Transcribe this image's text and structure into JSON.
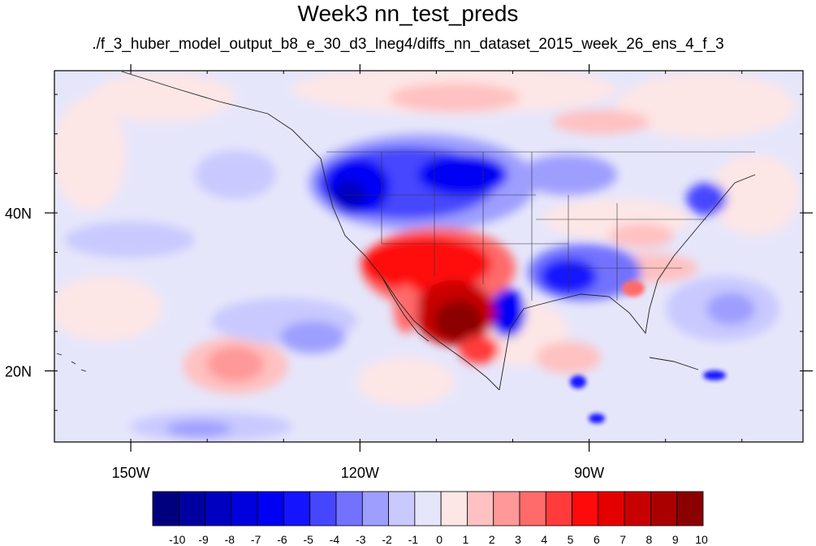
{
  "title": "Week3 nn_test_preds",
  "subtitle": "./f_3_huber_model_output_b8_e_30_d3_lneg4/diffs_nn_dataset_2015_week_26_ens_4_f_3",
  "map": {
    "lon_range": [
      -160,
      -62
    ],
    "lat_range": [
      11,
      58
    ],
    "lon_ticks": [
      {
        "value": -150,
        "label": "150W"
      },
      {
        "value": -120,
        "label": "120W"
      },
      {
        "value": -90,
        "label": "90W"
      }
    ],
    "lat_ticks": [
      {
        "value": 40,
        "label": "40N"
      },
      {
        "value": 20,
        "label": "20N"
      }
    ],
    "field_description": "filled contour map of prediction differences over North America"
  },
  "colorbar": {
    "levels": [
      "-10",
      "-9",
      "-8",
      "-7",
      "-6",
      "-5",
      "-4",
      "-3",
      "-2",
      "-1",
      "0",
      "1",
      "2",
      "3",
      "4",
      "5",
      "6",
      "7",
      "8",
      "9",
      "10"
    ],
    "colors": [
      "#00007f",
      "#0000a0",
      "#0000c0",
      "#0000df",
      "#0000f5",
      "#1414ff",
      "#4646ff",
      "#7272ff",
      "#9e9eff",
      "#c9c9ff",
      "#e6e6fb",
      "#fde6e6",
      "#ffc1c1",
      "#ff9898",
      "#ff6a6a",
      "#ff3b3b",
      "#ff0a0a",
      "#e50000",
      "#c80000",
      "#aa0000",
      "#8b0000"
    ]
  }
}
